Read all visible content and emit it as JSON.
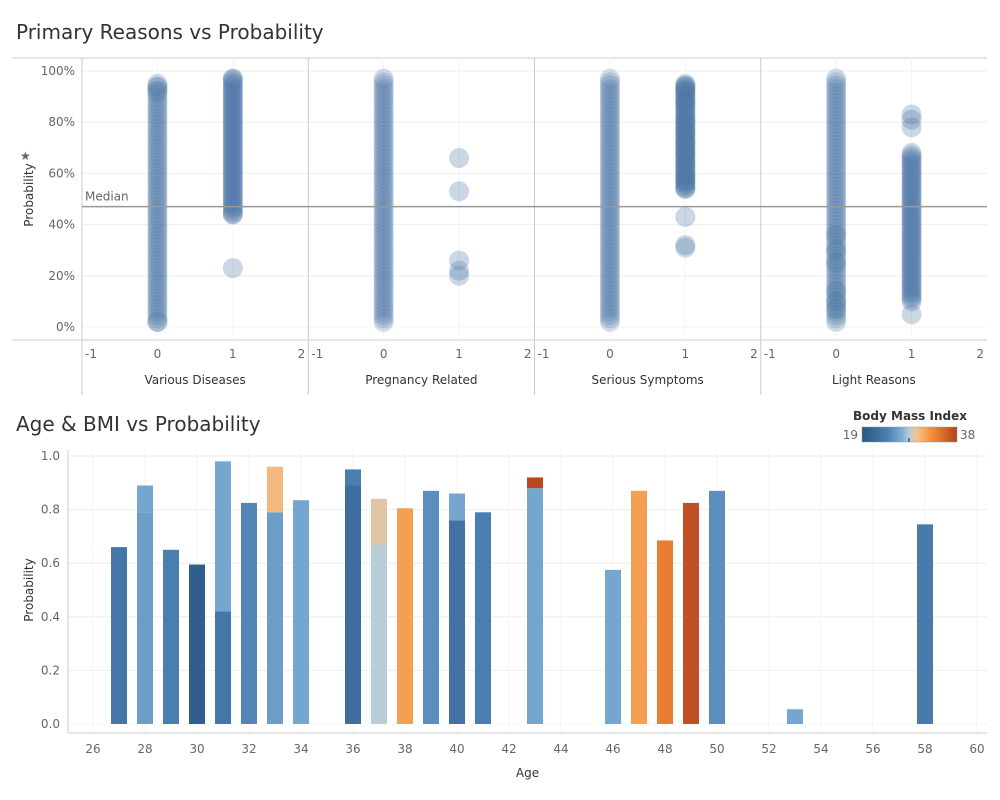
{
  "colors": {
    "point": "#4e79a7",
    "median_line": "#999999",
    "grid": "#eeeeee",
    "axis": "#cccccc",
    "bmi_low": "#2a5783",
    "bmi_mid1": "#6fa2cf",
    "bmi_mid2": "#f5c28e",
    "bmi_high": "#b2401f"
  },
  "chart_data": [
    {
      "type": "scatter",
      "title": "Primary Reasons vs Probability",
      "ylabel": "Probability",
      "ylim": [
        0,
        1
      ],
      "y_ticks": [
        "0%",
        "20%",
        "40%",
        "60%",
        "80%",
        "100%"
      ],
      "x_ticks": [
        "-1",
        "0",
        "1",
        "2"
      ],
      "xlim": [
        -1,
        2
      ],
      "reference_line": {
        "label": "Median",
        "value": 0.47
      },
      "panels": [
        {
          "name": "Various Diseases",
          "columns": [
            {
              "x": 0,
              "range": [
                0.02,
                0.95
              ],
              "points": [
                0.02,
                0.92,
                0.94
              ]
            },
            {
              "x": 1,
              "range": [
                0.44,
                0.97
              ],
              "points": [
                0.23,
                0.44,
                0.97
              ]
            }
          ]
        },
        {
          "name": "Pregnancy Related",
          "columns": [
            {
              "x": 0,
              "range": [
                0.02,
                0.97
              ],
              "points": []
            },
            {
              "x": 1,
              "range": null,
              "points": [
                0.2,
                0.22,
                0.26,
                0.53,
                0.66
              ]
            }
          ]
        },
        {
          "name": "Serious Symptoms",
          "columns": [
            {
              "x": 0,
              "range": [
                0.02,
                0.97
              ],
              "points": []
            },
            {
              "x": 1,
              "range": [
                0.54,
                0.95
              ],
              "points": [
                0.31,
                0.32,
                0.43,
                0.54,
                0.57,
                0.6,
                0.64,
                0.68,
                0.72,
                0.76,
                0.8,
                0.88,
                0.92,
                0.94
              ]
            }
          ]
        },
        {
          "name": "Light Reasons",
          "columns": [
            {
              "x": 0,
              "range": [
                0.02,
                0.97
              ],
              "points": [
                0.07,
                0.1,
                0.14,
                0.25,
                0.3,
                0.36
              ]
            },
            {
              "x": 1,
              "range": [
                0.1,
                0.68
              ],
              "points": [
                0.05,
                0.78,
                0.81,
                0.83
              ]
            }
          ]
        }
      ]
    },
    {
      "type": "bar",
      "title": "Age & BMI vs Probability",
      "xlabel": "Age",
      "ylabel": "Probability",
      "ylim": [
        0,
        1
      ],
      "xlim": [
        25,
        60
      ],
      "y_ticks": [
        "0.0",
        "0.2",
        "0.4",
        "0.6",
        "0.8",
        "1.0"
      ],
      "x_ticks": [
        "26",
        "28",
        "30",
        "32",
        "34",
        "36",
        "38",
        "40",
        "42",
        "44",
        "46",
        "48",
        "50",
        "52",
        "54",
        "56",
        "58",
        "60"
      ],
      "legend": {
        "title": "Body Mass Index",
        "min": "19",
        "max": "38",
        "placement": "top-right"
      },
      "bars": [
        {
          "age": 27,
          "segments": [
            {
              "value": 0.66,
              "bmi": 23
            }
          ]
        },
        {
          "age": 28,
          "segments": [
            {
              "value": 0.79,
              "bmi": 26
            },
            {
              "value": 0.1,
              "bmi": 26.5
            }
          ]
        },
        {
          "age": 29,
          "segments": [
            {
              "value": 0.65,
              "bmi": 24
            }
          ]
        },
        {
          "age": 30,
          "segments": [
            {
              "value": 0.595,
              "bmi": 20
            }
          ]
        },
        {
          "age": 31,
          "segments": [
            {
              "value": 0.42,
              "bmi": 23
            },
            {
              "value": 0.56,
              "bmi": 26.5
            }
          ]
        },
        {
          "age": 32,
          "segments": [
            {
              "value": 0.825,
              "bmi": 24.5
            }
          ]
        },
        {
          "age": 33,
          "segments": [
            {
              "value": 0.79,
              "bmi": 26
            },
            {
              "value": 0.17,
              "bmi": 30.5
            }
          ]
        },
        {
          "age": 34,
          "segments": [
            {
              "value": 0.835,
              "bmi": 26.5
            }
          ]
        },
        {
          "age": 36,
          "segments": [
            {
              "value": 0.89,
              "bmi": 22
            },
            {
              "value": 0.06,
              "bmi": 24
            }
          ]
        },
        {
          "age": 37,
          "segments": [
            {
              "value": 0.67,
              "bmi": 28.5
            },
            {
              "value": 0.17,
              "bmi": 29.5
            }
          ]
        },
        {
          "age": 38,
          "segments": [
            {
              "value": 0.805,
              "bmi": 32
            }
          ]
        },
        {
          "age": 39,
          "segments": [
            {
              "value": 0.87,
              "bmi": 25
            }
          ]
        },
        {
          "age": 40,
          "segments": [
            {
              "value": 0.76,
              "bmi": 22.5
            },
            {
              "value": 0.1,
              "bmi": 26.5
            }
          ]
        },
        {
          "age": 41,
          "segments": [
            {
              "value": 0.79,
              "bmi": 24
            }
          ]
        },
        {
          "age": 43,
          "segments": [
            {
              "value": 0.88,
              "bmi": 26.5
            },
            {
              "value": 0.04,
              "bmi": 37.5
            }
          ]
        },
        {
          "age": 46,
          "segments": [
            {
              "value": 0.575,
              "bmi": 26.5
            }
          ]
        },
        {
          "age": 47,
          "segments": [
            {
              "value": 0.87,
              "bmi": 32
            }
          ]
        },
        {
          "age": 48,
          "segments": [
            {
              "value": 0.685,
              "bmi": 34
            }
          ]
        },
        {
          "age": 49,
          "segments": [
            {
              "value": 0.825,
              "bmi": 37
            }
          ]
        },
        {
          "age": 50,
          "segments": [
            {
              "value": 0.87,
              "bmi": 25
            }
          ]
        },
        {
          "age": 53,
          "segments": [
            {
              "value": 0.055,
              "bmi": 26.5
            }
          ]
        },
        {
          "age": 58,
          "segments": [
            {
              "value": 0.745,
              "bmi": 23.5
            }
          ]
        }
      ]
    }
  ]
}
